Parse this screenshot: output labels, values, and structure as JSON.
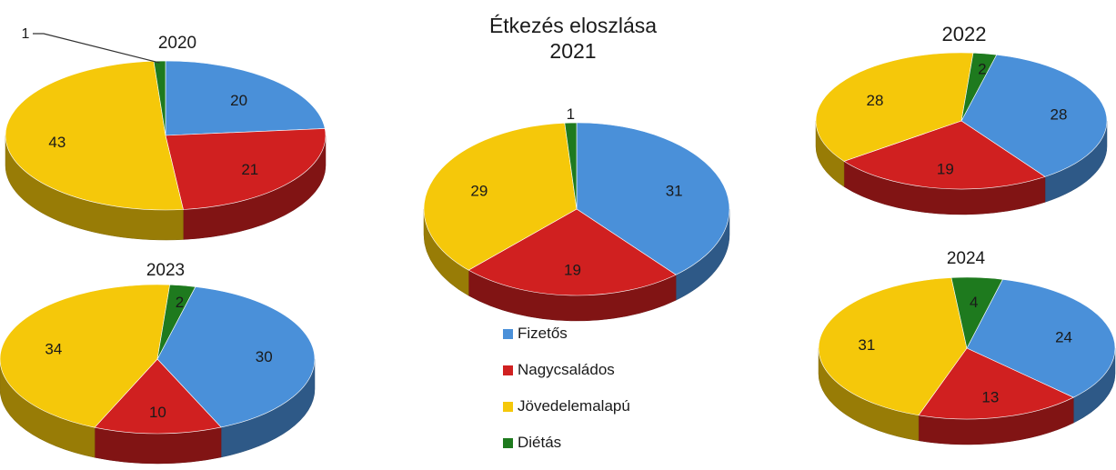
{
  "chart_data": {
    "type": "pie",
    "title": "Étkezés eloszlása",
    "legend": {
      "position": "bottom-center",
      "entries": [
        "Fizetős",
        "Nagycsaládos",
        "Jövedelemalapú",
        "Diétás"
      ]
    },
    "colors": [
      "#4a90d9",
      "#d02020",
      "#f5c80a",
      "#1e7a1e"
    ],
    "charts": [
      {
        "year": "2020",
        "values": [
          20,
          21,
          43,
          1
        ]
      },
      {
        "year": "2021",
        "values": [
          31,
          19,
          29,
          1
        ]
      },
      {
        "year": "2022",
        "values": [
          28,
          19,
          28,
          2
        ]
      },
      {
        "year": "2023",
        "values": [
          30,
          10,
          34,
          2
        ]
      },
      {
        "year": "2024",
        "values": [
          24,
          13,
          31,
          4
        ]
      }
    ]
  }
}
